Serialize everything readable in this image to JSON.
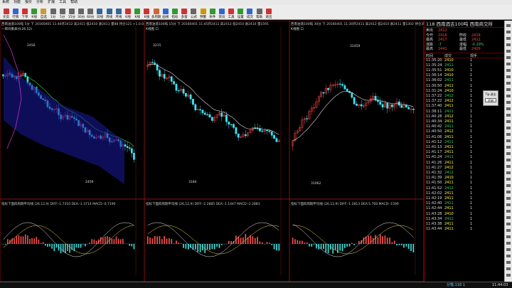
{
  "menu": [
    "系统",
    "功能",
    "报价",
    "分析",
    "扩展",
    "工具",
    "帮助"
  ],
  "toolbar": [
    {
      "l": "买卖",
      "c": "#c33"
    },
    {
      "l": "行情",
      "c": "#36c"
    },
    {
      "l": "下单",
      "c": "#c33"
    },
    {
      "l": "K线",
      "c": "#393"
    },
    {
      "l": "自选",
      "c": "#c93"
    },
    {
      "l": "1分",
      "c": "#666"
    },
    {
      "l": "5分",
      "c": "#666"
    },
    {
      "l": "15分",
      "c": "#666"
    },
    {
      "l": "30分",
      "c": "#666"
    },
    {
      "l": "60分",
      "c": "#666"
    },
    {
      "l": "日线",
      "c": "#369"
    },
    {
      "l": "周线",
      "c": "#369"
    },
    {
      "l": "月线",
      "c": "#369"
    },
    {
      "l": "K线",
      "c": "#c33"
    },
    {
      "l": "K线",
      "c": "#393"
    },
    {
      "l": "K线",
      "c": "#c33"
    },
    {
      "l": "多周期",
      "c": "#c63"
    },
    {
      "l": "画线",
      "c": "#36c"
    },
    {
      "l": "指标",
      "c": "#393"
    },
    {
      "l": "多窗",
      "c": "#c33"
    },
    {
      "l": "公式",
      "c": "#666"
    },
    {
      "l": "预警",
      "c": "#c90"
    },
    {
      "l": "条件",
      "c": "#393"
    },
    {
      "l": "资讯",
      "c": "#36c"
    },
    {
      "l": "工具",
      "c": "#c33"
    },
    {
      "l": "设置",
      "c": "#393"
    },
    {
      "l": "成交",
      "c": "#36c"
    },
    {
      "l": "帮助",
      "c": "#666"
    },
    {
      "l": "退出",
      "c": "#c33"
    }
  ],
  "panels": [
    {
      "header": "西南油酒100吨 5分 下 20160401 11:40开2412 高2415 低2410 收2411 量88 持仓121 +1.0.04%",
      "h2": "一目均衡表(9,26,52)",
      "ind": "指标下面四周期平均线 (26,12,9) DIFF:-1.7310 DEA:-1.3714 MACD:-0.7190",
      "price_hi": "2456",
      "price_lo": "2409"
    },
    {
      "header": "西南油酒100吨 15分 下 20160401 11:45开2411 高2412 低2410 收2410 量1591",
      "h2": "K线图 口",
      "ind": "指标下面四周期平均线 (26,12,9) DIFF:-2.2885 DEA:-1.1447 MACD:-2.2883",
      "price_hi": "3215",
      "price_lo": "3184"
    },
    {
      "header": "西南油酒100吨 30分 下 20160401 11:30开2411 高2412 低2410 收2411 量1302 持仓3502",
      "h2": "K线图 口",
      "ind": "指标下面四周期平均线 (26,12,9) DIFF:-1.2813 DEA:5.700 MACD:-1596",
      "price_hi": "31459",
      "price_lo": "31062"
    }
  ],
  "right": {
    "title": "118 西南酒吉100吨 西南商交所",
    "quote": [
      [
        "卖出",
        "2412",
        "",
        ""
      ],
      [
        "今开",
        "2416",
        "昨收",
        "2418"
      ],
      [
        "最高",
        "2417",
        "最低",
        "2412"
      ],
      [
        "涨跌",
        "-7",
        "涨幅",
        "-0.29%"
      ],
      [
        "最高",
        "2441",
        "最低",
        "2409"
      ]
    ],
    "cols": [
      "时间",
      "成交",
      "现手"
    ],
    "ticks": [
      [
        "11:35:20",
        "2410",
        "1"
      ],
      [
        "11:35:24",
        "2411",
        "1"
      ],
      [
        "11:35:51",
        "2410",
        "1"
      ],
      [
        "11:36:14",
        "2410",
        "1"
      ],
      [
        "11:36:02",
        "2411",
        "1"
      ],
      [
        "11:30:50",
        "2411",
        "1"
      ],
      [
        "11:31:24",
        "2410",
        "1"
      ],
      [
        "11:37:22",
        "2412",
        "1"
      ],
      [
        "11:37:22",
        "2412",
        "1"
      ],
      [
        "11:37:40",
        "2411",
        "1"
      ],
      [
        "11:38:11",
        "2411",
        "1"
      ],
      [
        "11:40:28",
        "2412",
        "1"
      ],
      [
        "11:40:34",
        "2411",
        "1"
      ],
      [
        "11:40:42",
        "2411",
        "1"
      ],
      [
        "11:40:50",
        "2412",
        "1"
      ],
      [
        "11:41:06",
        "2411",
        "1"
      ],
      [
        "11:41:12",
        "2411",
        "1"
      ],
      [
        "11:41:13",
        "2411",
        "1"
      ],
      [
        "11:41:17",
        "2411",
        "1"
      ],
      [
        "11:41:24",
        "2411",
        "1"
      ],
      [
        "11:41:26",
        "2411",
        "1"
      ],
      [
        "11:41:27",
        "2412",
        "1"
      ],
      [
        "11:41:32",
        "2412",
        "1"
      ],
      [
        "11:41:39",
        "2410",
        "1"
      ],
      [
        "11:41:50",
        "2411",
        "1"
      ],
      [
        "11:41:52",
        "2412",
        "1"
      ],
      [
        "11:42:02",
        "2411",
        "1"
      ],
      [
        "11:42:19",
        "2411",
        "1"
      ],
      [
        "11:42:40",
        "2411",
        "1"
      ],
      [
        "11:42:44",
        "2411",
        "1"
      ],
      [
        "11:43:28",
        "2410",
        "1"
      ],
      [
        "11:43:34",
        "2411",
        "1"
      ],
      [
        "11:43:38",
        "2411",
        "1"
      ],
      [
        "11:43:44",
        "2411",
        "1"
      ]
    ],
    "popup_label": "Tip:退出",
    "popup_button": "开始"
  },
  "status": {
    "left": "",
    "mid": "分笔:118 1",
    "time": "11:44:03"
  }
}
